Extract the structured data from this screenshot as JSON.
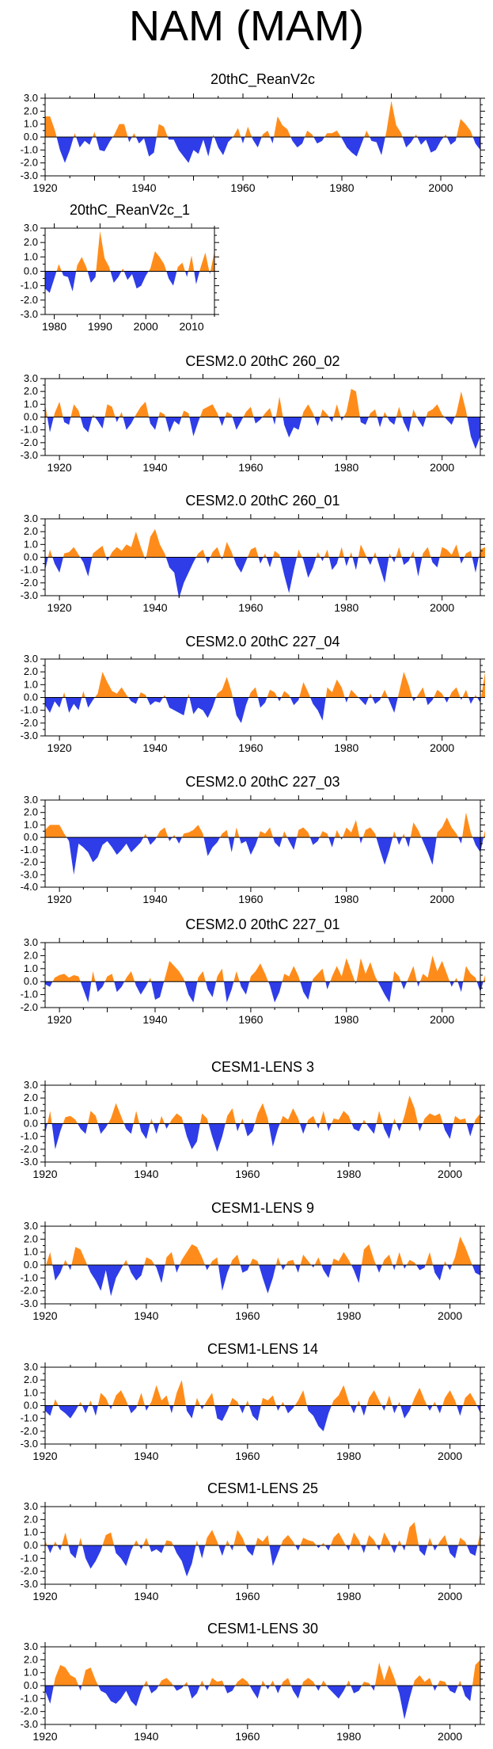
{
  "page": {
    "title": "NAM (MAM)"
  },
  "colors": {
    "positive": "#ff8c1a",
    "negative": "#2e3de8",
    "axis": "#000000"
  },
  "chart_data": [
    {
      "type": "area",
      "title": "20thC_ReanV2c",
      "xlim": [
        1920,
        2008
      ],
      "ylim": [
        -3.0,
        3.0
      ],
      "yticks": [
        "3.0",
        "2.0",
        "1.0",
        "0.0",
        "-1.0",
        "-2.0",
        "-3.0"
      ],
      "xticks": [
        "1920",
        "1940",
        "1960",
        "1980",
        "2000"
      ],
      "x_start": 1920,
      "values": [
        1.6,
        1.6,
        0.5,
        -1.0,
        -2.0,
        -1.0,
        0.3,
        -0.8,
        -0.3,
        -0.6,
        0.4,
        -1.0,
        -1.1,
        -0.4,
        0.2,
        1.0,
        1.0,
        -0.4,
        0.3,
        -0.5,
        -0.1,
        -1.5,
        -1.2,
        1.0,
        0.8,
        -0.2,
        -0.2,
        -1.0,
        -1.5,
        -2.0,
        -1.0,
        -1.3,
        -0.2,
        -1.5,
        0.2,
        -0.8,
        -1.4,
        -0.4,
        0.0,
        0.7,
        -0.5,
        0.8,
        -0.2,
        -0.8,
        0.2,
        0.5,
        -0.5,
        1.6,
        0.9,
        0.6,
        -0.3,
        -0.8,
        -0.5,
        0.5,
        0.2,
        -0.5,
        -0.3,
        0.3,
        0.3,
        0.5,
        -0.1,
        -0.8,
        -1.2,
        -1.5,
        -0.5,
        0.5,
        -0.3,
        -0.4,
        -1.4,
        0.4,
        2.8,
        0.9,
        0.3,
        -0.8,
        -0.4,
        0.2,
        -0.6,
        -0.2,
        -1.2,
        -1.0,
        -0.3,
        0.2,
        -0.6,
        -0.3,
        1.4,
        1.0,
        0.5,
        -0.5,
        -1.0
      ]
    },
    {
      "type": "area",
      "title": "20thC_ReanV2c_1",
      "xlim": [
        1978,
        2015
      ],
      "ylim": [
        -3.0,
        3.0
      ],
      "yticks": [
        "3.0",
        "2.0",
        "1.0",
        "0.0",
        "-1.0",
        "-2.0",
        "-3.0"
      ],
      "xticks": [
        "1980",
        "1990",
        "2000",
        "2010"
      ],
      "x_start": 1978,
      "values": [
        -1.2,
        -1.5,
        -0.5,
        0.5,
        -0.3,
        -0.4,
        -1.4,
        0.4,
        1.0,
        0.3,
        -0.8,
        -0.4,
        2.8,
        0.9,
        0.3,
        -0.8,
        -0.4,
        0.2,
        -0.6,
        -0.2,
        -1.2,
        -1.0,
        -0.3,
        0.2,
        1.4,
        1.0,
        0.5,
        -0.5,
        -1.0,
        0.3,
        0.6,
        -0.4,
        1.1,
        -0.9,
        0.3,
        1.3,
        -0.2,
        1.4
      ]
    },
    {
      "type": "area",
      "title": "CESM2.0 20thC 260_02",
      "xlim": [
        1917,
        2008
      ],
      "ylim": [
        -3.0,
        3.0
      ],
      "yticks": [
        "3.0",
        "2.0",
        "1.0",
        "0.0",
        "-1.0",
        "-2.0",
        "-3.0"
      ],
      "xticks": [
        "1920",
        "1940",
        "1960",
        "1980",
        "2000"
      ],
      "x_start": 1917,
      "values": [
        1.0,
        -1.2,
        0.3,
        1.2,
        -0.4,
        -0.6,
        1.0,
        0.5,
        -0.8,
        -1.2,
        0.2,
        -0.3,
        -0.9,
        1.0,
        0.8,
        -0.4,
        0.4,
        -1.0,
        -0.5,
        0.2,
        0.8,
        1.2,
        -0.5,
        -1.0,
        0.4,
        0.2,
        -1.2,
        -0.3,
        -0.6,
        0.5,
        0.3,
        -1.5,
        -0.4,
        0.6,
        0.8,
        1.0,
        0.3,
        -0.7,
        0.4,
        0.2,
        -1.0,
        -0.3,
        0.4,
        0.8,
        -0.5,
        -0.2,
        0.3,
        0.7,
        -0.6,
        1.6,
        -0.6,
        -1.6,
        -0.8,
        -1.0,
        0.4,
        1.0,
        0.3,
        -0.7,
        0.6,
        0.2,
        -0.4,
        1.0,
        -0.3,
        0.4,
        2.2,
        2.0,
        -0.4,
        -0.6,
        0.3,
        0.6,
        -0.8,
        0.4,
        -0.3,
        -0.6,
        0.8,
        -0.4,
        -1.2,
        0.6,
        -0.2,
        -0.8,
        0.4,
        0.6,
        1.0,
        0.2,
        -0.2,
        -0.6,
        0.3,
        2.0,
        0.5,
        -1.5,
        -2.5,
        -1.5
      ]
    },
    {
      "type": "area",
      "title": "CESM2.0 20thC 260_01",
      "xlim": [
        1917,
        2008
      ],
      "ylim": [
        -3.0,
        3.0
      ],
      "yticks": [
        "3.0",
        "2.0",
        "1.0",
        "0.0",
        "-1.0",
        "-2.0",
        "-3.0"
      ],
      "xticks": [
        "1920",
        "1940",
        "1960",
        "1980",
        "2000"
      ],
      "x_start": 1917,
      "values": [
        -1.0,
        0.6,
        -0.5,
        -1.2,
        0.3,
        0.4,
        0.8,
        0.2,
        -0.4,
        -1.5,
        0.3,
        0.6,
        0.9,
        -0.3,
        0.4,
        0.8,
        0.5,
        1.0,
        0.8,
        2.0,
        0.8,
        -0.2,
        1.6,
        2.2,
        1.0,
        0.3,
        -0.8,
        -1.2,
        -3.2,
        -2.0,
        -1.2,
        -0.4,
        0.3,
        0.6,
        -0.5,
        0.4,
        0.8,
        -0.2,
        1.2,
        0.4,
        -0.6,
        -1.2,
        -0.3,
        0.6,
        0.8,
        -0.5,
        0.3,
        -0.8,
        0.5,
        0.2,
        -1.4,
        -2.8,
        -1.0,
        0.6,
        -0.2,
        -1.6,
        -0.8,
        0.4,
        -0.3,
        0.6,
        -1.0,
        -0.5,
        0.8,
        -0.7,
        0.4,
        -1.0,
        1.0,
        0.2,
        -0.6,
        0.4,
        -0.8,
        -2.0,
        0.3,
        -0.4,
        0.8,
        -0.6,
        -0.3,
        0.5,
        -1.5,
        0.3,
        0.8,
        -0.4,
        -0.8,
        0.8,
        0.6,
        0.2,
        1.0,
        -0.5,
        0.3,
        0.5,
        -1.2,
        0.6,
        0.8
      ]
    },
    {
      "type": "area",
      "title": "CESM2.0 20thC 227_04",
      "xlim": [
        1917,
        2008
      ],
      "ylim": [
        -3.0,
        3.0
      ],
      "yticks": [
        "3.0",
        "2.0",
        "1.0",
        "0.0",
        "-1.0",
        "-2.0",
        "-3.0"
      ],
      "xticks": [
        "1920",
        "1940",
        "1960",
        "1980",
        "2000"
      ],
      "x_start": 1917,
      "values": [
        -0.6,
        -1.2,
        -0.3,
        -0.8,
        0.4,
        -1.2,
        -0.5,
        -1.0,
        0.5,
        -0.8,
        -0.2,
        0.3,
        2.0,
        1.2,
        0.5,
        0.3,
        0.8,
        0.2,
        -0.3,
        -0.5,
        0.4,
        0.2,
        -0.6,
        -0.3,
        -0.4,
        0.2,
        -0.8,
        -1.0,
        -1.2,
        -1.4,
        0.3,
        -1.3,
        -0.8,
        -1.0,
        -1.6,
        -0.8,
        0.3,
        0.6,
        1.6,
        0.4,
        -1.4,
        -2.0,
        -0.6,
        0.4,
        0.8,
        -0.8,
        -0.4,
        0.6,
        0.4,
        -0.3,
        0.5,
        0.2,
        -0.6,
        -0.2,
        1.2,
        0.4,
        -0.5,
        -1.0,
        -1.8,
        0.8,
        0.4,
        1.4,
        0.8,
        -0.4,
        0.6,
        0.2,
        -0.2,
        -0.6,
        0.3,
        -0.5,
        -0.2,
        0.6,
        -0.3,
        -1.2,
        0.4,
        2.0,
        1.0,
        -0.3,
        0.2,
        0.8,
        -0.6,
        -0.2,
        0.6,
        0.3,
        -0.4,
        0.4,
        0.8,
        -0.2,
        0.6,
        -0.5,
        0.2,
        -0.4,
        2.0
      ]
    },
    {
      "type": "area",
      "title": "CESM2.0 20thC 227_03",
      "xlim": [
        1917,
        2008
      ],
      "ylim": [
        -4.0,
        3.0
      ],
      "yticks": [
        "3.0",
        "2.0",
        "1.0",
        "0.0",
        "-1.0",
        "-2.0",
        "-3.0",
        "-4.0"
      ],
      "xticks": [
        "1920",
        "1940",
        "1960",
        "1980",
        "2000"
      ],
      "x_start": 1917,
      "values": [
        0.6,
        1.0,
        1.0,
        1.0,
        0.3,
        -0.3,
        -3.0,
        -0.5,
        -0.8,
        -1.2,
        -2.0,
        -1.6,
        -0.6,
        -0.3,
        -0.8,
        -1.4,
        -1.0,
        -0.5,
        -1.2,
        -0.8,
        -0.4,
        0.3,
        -0.6,
        -0.2,
        0.5,
        0.8,
        -0.3,
        0.2,
        -0.5,
        0.3,
        0.4,
        0.6,
        1.0,
        0.3,
        -1.5,
        -0.8,
        -0.4,
        0.3,
        0.6,
        -1.2,
        0.8,
        -0.5,
        -0.3,
        -1.4,
        -0.6,
        0.5,
        0.3,
        0.8,
        -0.4,
        -0.8,
        0.5,
        -0.3,
        -1.0,
        0.6,
        0.8,
        0.4,
        -0.6,
        -0.3,
        0.5,
        0.3,
        -0.8,
        0.6,
        -0.2,
        0.8,
        0.4,
        1.4,
        -0.5,
        0.6,
        0.8,
        0.3,
        -1.0,
        -2.2,
        -1.0,
        0.5,
        -0.6,
        0.3,
        -0.8,
        1.2,
        0.6,
        -0.3,
        -1.2,
        -2.2,
        0.4,
        0.8,
        1.6,
        0.8,
        0.3,
        -0.5,
        2.0,
        0.4,
        -0.6,
        -1.2,
        0.6
      ]
    },
    {
      "type": "area",
      "title": "CESM2.0 20thC 227_01",
      "xlim": [
        1917,
        2008
      ],
      "ylim": [
        -2.0,
        3.0
      ],
      "yticks": [
        "3.0",
        "2.0",
        "1.0",
        "0.0",
        "-1.0",
        "-2.0"
      ],
      "xticks": [
        "1920",
        "1940",
        "1960",
        "1980",
        "2000"
      ],
      "x_start": 1917,
      "values": [
        -0.2,
        -0.4,
        0.3,
        0.5,
        0.6,
        0.3,
        0.5,
        0.4,
        -0.6,
        -1.6,
        0.8,
        -0.8,
        -0.4,
        0.4,
        0.6,
        -0.8,
        -0.4,
        0.3,
        0.8,
        -0.3,
        -1.0,
        -0.4,
        0.3,
        -1.4,
        -1.2,
        0.2,
        1.6,
        1.2,
        0.8,
        0.2,
        -1.0,
        -1.6,
        0.3,
        0.8,
        -0.6,
        -1.2,
        0.4,
        1.0,
        -1.6,
        -0.6,
        0.8,
        -0.4,
        -1.0,
        0.4,
        0.8,
        1.4,
        0.6,
        -0.3,
        -1.6,
        -0.8,
        0.6,
        0.4,
        1.2,
        0.4,
        -0.8,
        -1.4,
        0.2,
        0.6,
        1.0,
        -0.6,
        0.4,
        1.2,
        0.4,
        1.8,
        0.8,
        -0.2,
        1.8,
        0.6,
        1.5,
        0.4,
        -0.3,
        -1.0,
        -1.6,
        0.8,
        0.4,
        -0.6,
        0.3,
        1.2,
        -0.4,
        0.6,
        0.3,
        2.0,
        0.8,
        1.6,
        0.6,
        -0.4,
        0.3,
        -0.8,
        1.2,
        0.6,
        0.3,
        -0.8,
        0.5
      ]
    },
    {
      "type": "area",
      "title": "CESM1-LENS 3",
      "xlim": [
        1920,
        2006
      ],
      "ylim": [
        -3.0,
        3.0
      ],
      "yticks": [
        "3.0",
        "2.0",
        "1.0",
        "0.0",
        "-1.0",
        "-2.0",
        "-3.0"
      ],
      "xticks": [
        "1920",
        "1940",
        "1960",
        "1980",
        "2000"
      ],
      "x_start": 1920,
      "values": [
        -0.8,
        1.0,
        -2.0,
        -0.6,
        0.5,
        0.6,
        0.3,
        -0.4,
        -0.8,
        1.0,
        0.6,
        -0.8,
        -0.3,
        0.4,
        1.6,
        0.6,
        -0.4,
        -0.8,
        1.0,
        -0.6,
        -1.2,
        0.4,
        -0.8,
        0.6,
        -0.4,
        0.3,
        0.8,
        0.5,
        -1.0,
        -2.0,
        -1.4,
        0.8,
        0.4,
        -1.0,
        -2.2,
        -1.0,
        0.6,
        1.2,
        -0.6,
        0.4,
        -1.0,
        -0.6,
        0.8,
        1.6,
        0.4,
        -1.8,
        -0.4,
        0.6,
        0.3,
        1.2,
        0.4,
        -0.8,
        0.3,
        0.6,
        -0.4,
        1.0,
        -0.6,
        0.4,
        0.3,
        1.0,
        0.6,
        -0.4,
        -0.6,
        0.3,
        -0.3,
        -0.8,
        1.0,
        -0.4,
        -1.2,
        0.4,
        -0.6,
        0.6,
        2.2,
        1.2,
        -0.6,
        0.4,
        0.8,
        0.6,
        0.8,
        -0.5,
        -1.2,
        0.6,
        0.3,
        0.4,
        -1.0,
        0.3,
        0.8
      ]
    },
    {
      "type": "area",
      "title": "CESM1-LENS 9",
      "xlim": [
        1920,
        2006
      ],
      "ylim": [
        -3.0,
        3.0
      ],
      "yticks": [
        "3.0",
        "2.0",
        "1.0",
        "0.0",
        "-1.0",
        "-2.0",
        "-3.0"
      ],
      "xticks": [
        "1920",
        "1940",
        "1960",
        "1980",
        "2000"
      ],
      "x_start": 1920,
      "values": [
        -0.2,
        1.0,
        -1.2,
        -0.6,
        0.4,
        -0.4,
        1.4,
        1.2,
        0.3,
        -0.6,
        -1.2,
        -2.0,
        -0.4,
        -2.4,
        -1.0,
        -0.3,
        0.4,
        -0.6,
        -1.2,
        -0.8,
        0.6,
        0.4,
        -0.2,
        -1.4,
        0.6,
        1.0,
        -0.6,
        0.4,
        1.0,
        1.6,
        1.4,
        0.6,
        -0.4,
        0.3,
        0.6,
        -2.0,
        -0.6,
        0.4,
        0.8,
        -0.6,
        -0.4,
        0.5,
        0.3,
        -1.0,
        -2.2,
        -1.0,
        0.6,
        -0.4,
        0.3,
        0.4,
        -0.6,
        0.8,
        0.3,
        -0.2,
        0.6,
        -0.4,
        -1.0,
        0.5,
        0.3,
        1.0,
        0.4,
        -0.4,
        -1.4,
        1.2,
        1.6,
        0.4,
        -0.6,
        0.4,
        0.8,
        -0.4,
        1.0,
        -0.3,
        0.4,
        0.2,
        -0.4,
        -0.2,
        1.0,
        -0.6,
        -1.2,
        0.3,
        -0.4,
        0.6,
        2.2,
        1.4,
        0.4,
        -0.6,
        -0.8
      ]
    },
    {
      "type": "area",
      "title": "CESM1-LENS 14",
      "xlim": [
        1920,
        2006
      ],
      "ylim": [
        -3.0,
        3.0
      ],
      "yticks": [
        "3.0",
        "2.0",
        "1.0",
        "0.0",
        "-1.0",
        "-2.0",
        "-3.0"
      ],
      "xticks": [
        "1920",
        "1940",
        "1960",
        "1980",
        "2000"
      ],
      "x_start": 1920,
      "values": [
        -0.4,
        -0.8,
        0.5,
        -0.3,
        -0.6,
        -1.0,
        -0.4,
        0.3,
        -0.6,
        0.4,
        -0.8,
        1.0,
        0.6,
        -0.3,
        0.8,
        1.2,
        0.4,
        -0.6,
        -0.2,
        1.0,
        -0.4,
        0.3,
        1.6,
        0.4,
        0.8,
        -0.6,
        1.0,
        2.0,
        -0.4,
        -1.0,
        0.6,
        -0.3,
        0.4,
        1.0,
        -1.0,
        -1.2,
        -0.4,
        0.6,
        0.3,
        -0.6,
        0.4,
        -0.8,
        -1.2,
        0.6,
        0.4,
        0.8,
        -0.4,
        0.3,
        -0.6,
        -0.2,
        0.4,
        1.2,
        -0.4,
        -0.8,
        -1.6,
        -2.0,
        -0.6,
        0.4,
        0.8,
        1.6,
        0.3,
        -0.6,
        0.4,
        -0.8,
        0.6,
        1.2,
        0.4,
        -0.4,
        0.8,
        -0.6,
        0.3,
        -1.0,
        -0.4,
        0.6,
        1.4,
        0.4,
        -0.4,
        0.3,
        -0.6,
        0.6,
        1.2,
        0.4,
        -0.8,
        0.6,
        1.0,
        0.3,
        -0.6
      ]
    },
    {
      "type": "area",
      "title": "CESM1-LENS 25",
      "xlim": [
        1920,
        2006
      ],
      "ylim": [
        -3.0,
        3.0
      ],
      "yticks": [
        "3.0",
        "2.0",
        "1.0",
        "0.0",
        "-1.0",
        "-2.0",
        "-3.0"
      ],
      "xticks": [
        "1920",
        "1940",
        "1960",
        "1980",
        "2000"
      ],
      "x_start": 1920,
      "values": [
        0.4,
        -0.6,
        0.3,
        -0.4,
        1.0,
        -0.6,
        -1.0,
        0.6,
        -1.0,
        -1.8,
        -1.2,
        -0.4,
        0.8,
        1.0,
        -0.6,
        -1.0,
        -1.6,
        -0.4,
        0.4,
        -0.3,
        0.6,
        -0.5,
        -0.3,
        -0.6,
        0.4,
        0.3,
        -0.6,
        -1.2,
        -2.4,
        -1.4,
        0.4,
        -1.0,
        0.6,
        1.2,
        0.3,
        -0.8,
        0.4,
        -0.4,
        1.2,
        0.6,
        -0.4,
        -0.8,
        0.6,
        0.3,
        0.8,
        -1.6,
        -0.6,
        0.4,
        0.8,
        0.3,
        -0.4,
        0.6,
        0.4,
        0.3,
        -0.2,
        0.2,
        -0.4,
        0.6,
        1.0,
        0.3,
        -0.4,
        1.0,
        0.4,
        -0.6,
        0.8,
        0.4,
        -0.4,
        1.0,
        0.3,
        -0.6,
        0.4,
        -0.4,
        1.4,
        1.8,
        -0.4,
        -0.8,
        0.6,
        -0.4,
        0.3,
        0.8,
        -0.6,
        -1.0,
        0.6,
        0.3,
        -0.6,
        -0.8,
        1.0
      ]
    },
    {
      "type": "area",
      "title": "CESM1-LENS 30",
      "xlim": [
        1920,
        2006
      ],
      "ylim": [
        -3.0,
        3.0
      ],
      "yticks": [
        "3.0",
        "2.0",
        "1.0",
        "0.0",
        "-1.0",
        "-2.0",
        "-3.0"
      ],
      "xticks": [
        "1920",
        "1940",
        "1960",
        "1980",
        "2000"
      ],
      "x_start": 1920,
      "values": [
        -0.4,
        -1.4,
        0.6,
        1.6,
        1.4,
        0.8,
        0.6,
        -0.4,
        1.2,
        1.4,
        0.4,
        -0.4,
        -0.6,
        -1.2,
        -1.4,
        -1.0,
        -0.4,
        -1.2,
        -1.6,
        -0.4,
        0.4,
        -0.6,
        -0.3,
        0.4,
        0.6,
        0.2,
        -0.4,
        -0.2,
        0.3,
        -1.0,
        -0.6,
        0.4,
        -0.4,
        0.6,
        0.3,
        0.4,
        -0.6,
        -0.4,
        0.3,
        0.6,
        0.3,
        -0.4,
        -1.0,
        0.4,
        -0.3,
        0.4,
        -0.6,
        0.3,
        0.6,
        -0.4,
        -1.0,
        0.3,
        0.6,
        0.3,
        -0.4,
        0.4,
        -0.2,
        -0.6,
        -1.0,
        -0.4,
        0.4,
        -0.6,
        -0.4,
        0.3,
        0.2,
        -0.4,
        1.8,
        0.4,
        1.6,
        0.6,
        -0.6,
        -2.6,
        -1.0,
        0.4,
        0.8,
        0.3,
        0.6,
        -0.4,
        0.4,
        0.3,
        -0.4,
        -0.6,
        0.4,
        -0.8,
        -1.2,
        1.6,
        2.0
      ]
    }
  ]
}
